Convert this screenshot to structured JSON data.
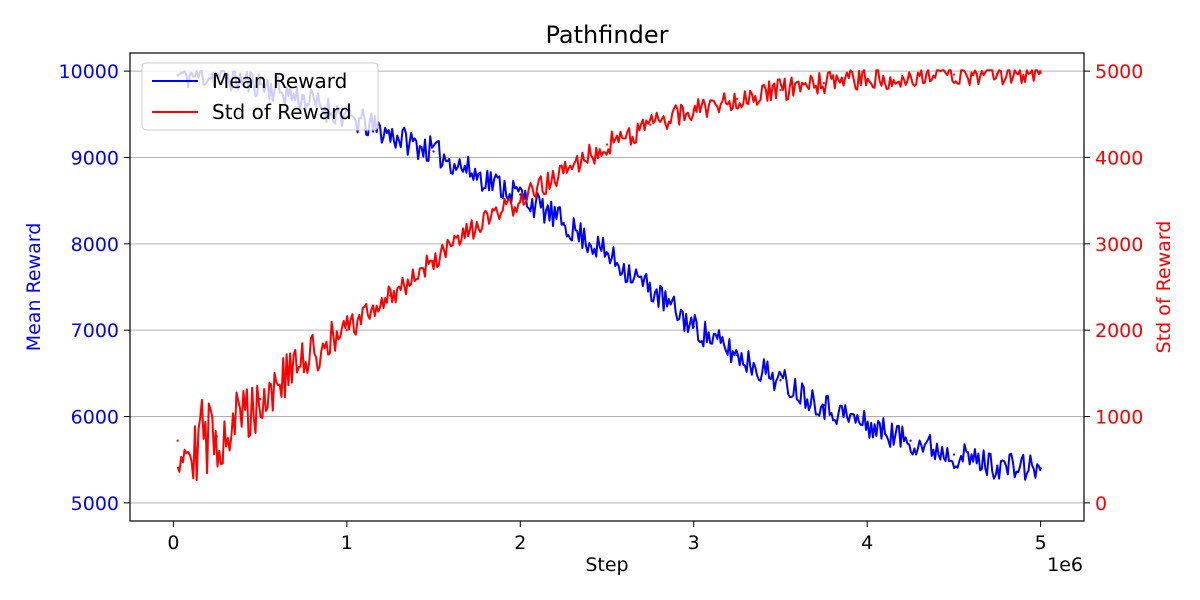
{
  "chart_data": {
    "type": "line",
    "title": "Pathfinder",
    "xlabel": "Step",
    "x_offset_label": "1e6",
    "ylabel_left": "Mean Reward",
    "ylabel_right": "Std of Reward",
    "xlim": [
      -250000,
      5250000
    ],
    "ylim_left": [
      4790,
      10210
    ],
    "ylim_right": [
      -210,
      5210
    ],
    "x_ticks": [
      0,
      1000000,
      2000000,
      3000000,
      4000000,
      5000000
    ],
    "x_tick_labels": [
      "0",
      "1",
      "2",
      "3",
      "4",
      "5"
    ],
    "y_left_ticks": [
      5000,
      6000,
      7000,
      8000,
      9000,
      10000
    ],
    "y_left_tick_labels": [
      "5000",
      "6000",
      "7000",
      "8000",
      "9000",
      "10000"
    ],
    "y_right_ticks": [
      0,
      1000,
      2000,
      3000,
      4000,
      5000
    ],
    "y_right_tick_labels": [
      "0",
      "1000",
      "2000",
      "3000",
      "4000",
      "5000"
    ],
    "grid": "horizontal (right axis)",
    "legend_position": "top-left",
    "colors": {
      "mean": "#0000ff",
      "std": "#ff0000",
      "grid": "#b0b0b0",
      "axes": "#000000"
    },
    "series": [
      {
        "name": "Mean Reward",
        "axis": "left",
        "color": "#0000ff",
        "points": [
          [
            25000,
            9950
          ],
          [
            250000,
            9950
          ],
          [
            500000,
            9850
          ],
          [
            750000,
            9680
          ],
          [
            1000000,
            9470
          ],
          [
            1250000,
            9270
          ],
          [
            1500000,
            9070
          ],
          [
            1750000,
            8800
          ],
          [
            2000000,
            8570
          ],
          [
            2250000,
            8240
          ],
          [
            2500000,
            7880
          ],
          [
            2750000,
            7480
          ],
          [
            3000000,
            7040
          ],
          [
            3250000,
            6710
          ],
          [
            3500000,
            6420
          ],
          [
            3750000,
            6130
          ],
          [
            4000000,
            5900
          ],
          [
            4250000,
            5720
          ],
          [
            4500000,
            5560
          ],
          [
            4750000,
            5430
          ],
          [
            5000000,
            5400
          ]
        ]
      },
      {
        "name": "Std of Reward",
        "axis": "right",
        "color": "#ff0000",
        "points": [
          [
            25000,
            720
          ],
          [
            250000,
            770
          ],
          [
            500000,
            1200
          ],
          [
            750000,
            1640
          ],
          [
            1000000,
            2000
          ],
          [
            1250000,
            2400
          ],
          [
            1500000,
            2800
          ],
          [
            1750000,
            3200
          ],
          [
            2000000,
            3500
          ],
          [
            2250000,
            3830
          ],
          [
            2500000,
            4150
          ],
          [
            2750000,
            4380
          ],
          [
            3000000,
            4550
          ],
          [
            3250000,
            4680
          ],
          [
            3500000,
            4780
          ],
          [
            3750000,
            4860
          ],
          [
            4000000,
            4900
          ],
          [
            4250000,
            4930
          ],
          [
            4500000,
            4960
          ],
          [
            4750000,
            4970
          ],
          [
            5000000,
            4980
          ]
        ]
      }
    ]
  }
}
